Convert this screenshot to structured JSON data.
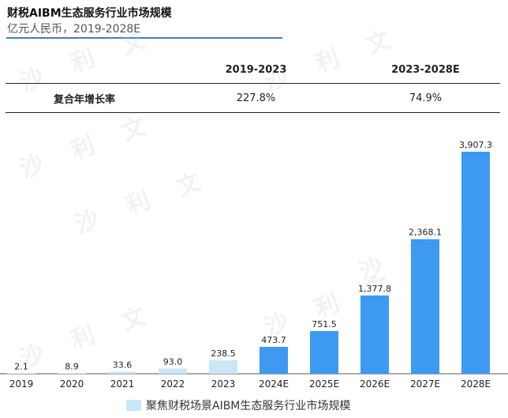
{
  "title": "财税AIBM生态服务行业市场规模",
  "subtitle": "亿元人民币，2019-2028E",
  "cagr_table": {
    "columns": [
      "2019-2023",
      "2023-2028E"
    ],
    "row_label": "复合年增长率",
    "values": [
      "227.8%",
      "74.9%"
    ]
  },
  "legend": {
    "label": "聚焦财税场景AIBM生态服务行业市场规模"
  },
  "watermark": "沙 利 文",
  "colors": {
    "historical": "#c9e6f5",
    "forecast": "#3d9af0",
    "title_rule": "#4a78c4"
  },
  "chart_data": {
    "type": "bar",
    "title": "财税AIBM生态服务行业市场规模",
    "ylabel": "亿元人民币",
    "categories": [
      "2019",
      "2020",
      "2021",
      "2022",
      "2023",
      "2024E",
      "2025E",
      "2026E",
      "2027E",
      "2028E"
    ],
    "values": [
      2.1,
      8.9,
      33.6,
      93.0,
      238.5,
      473.7,
      751.5,
      1377.8,
      2368.1,
      3907.3
    ],
    "value_labels": [
      "2.1",
      "8.9",
      "33.6",
      "93.0",
      "238.5",
      "473.7",
      "751.5",
      "1,377.8",
      "2,368.1",
      "3,907.3"
    ],
    "forecast_from_index": 5,
    "ylim": [
      0,
      3907.3
    ],
    "grid": false,
    "legend_position": "bottom"
  }
}
